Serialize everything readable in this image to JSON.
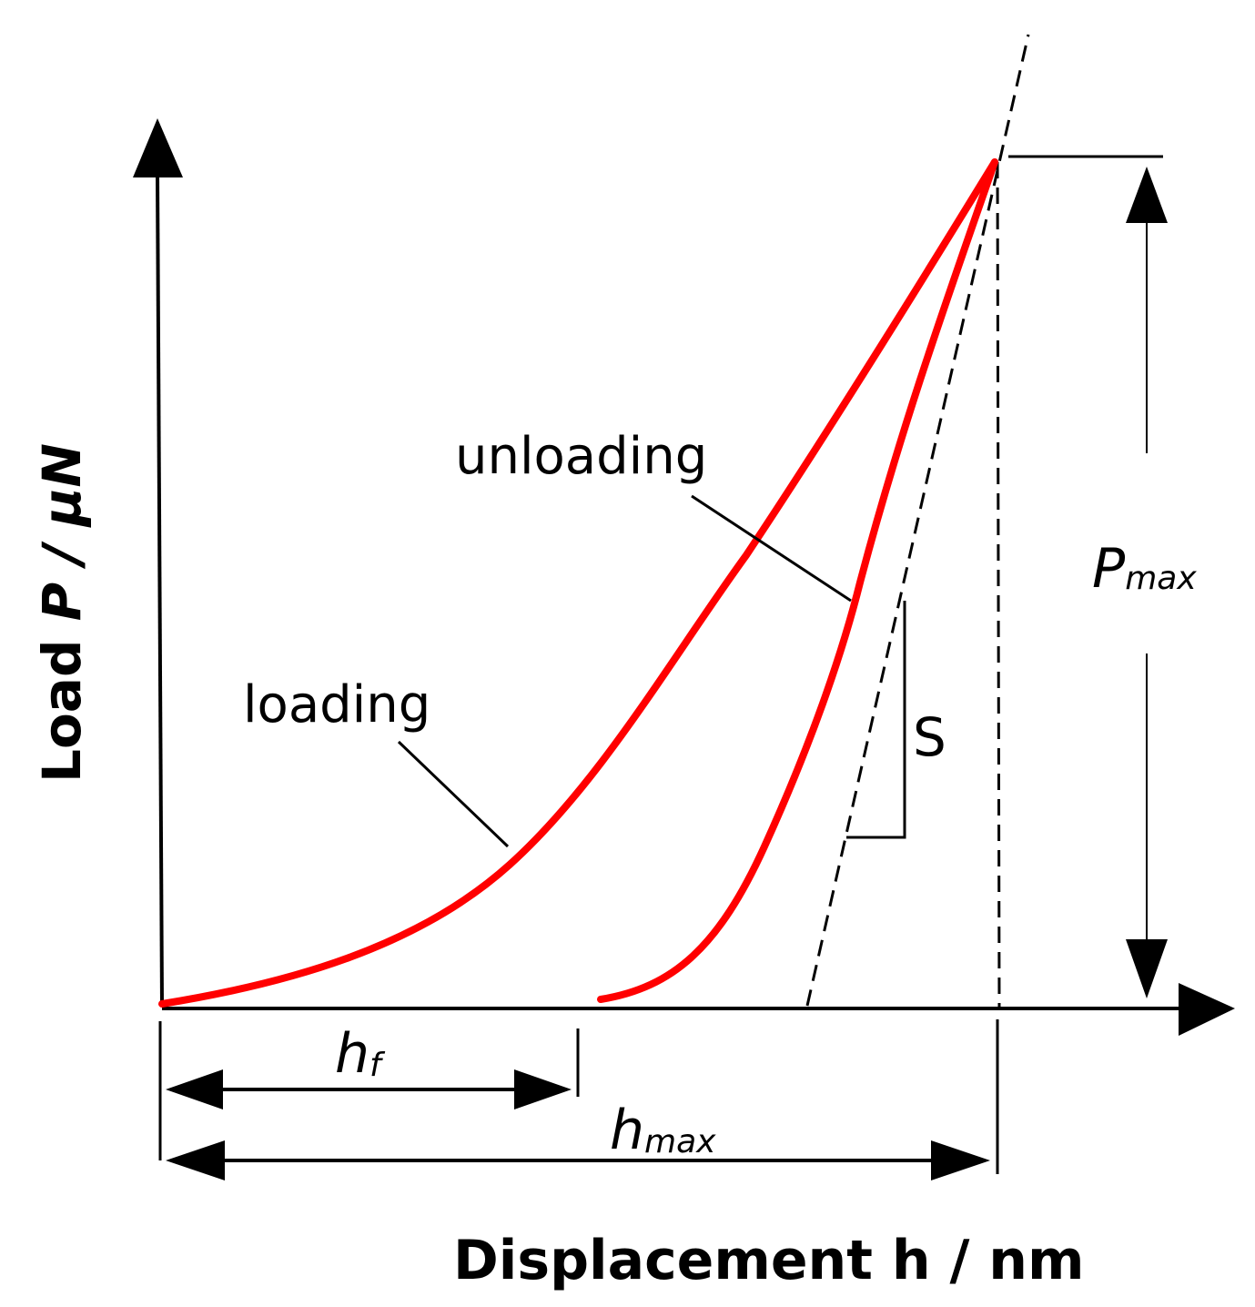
{
  "diagram": {
    "x_axis_label": "Displacement h / nm",
    "y_axis_label_prefix": "Load ",
    "y_axis_label_symbol": "P / μN",
    "loading_label": "loading",
    "unloading_label": "unloading",
    "stiffness_label": "S",
    "hf_label": {
      "main": "h",
      "sub": "f"
    },
    "hmax_label": {
      "main": "h",
      "sub": "max"
    },
    "pmax_label": {
      "main": "P",
      "sub": "max"
    },
    "colors": {
      "curve": "#ff0000",
      "lines": "#000000",
      "background": "#ffffff"
    }
  }
}
